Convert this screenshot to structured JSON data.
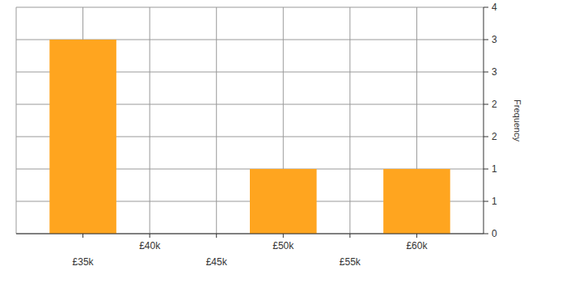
{
  "chart_data": {
    "type": "histogram",
    "y_label": "Frequency",
    "bins": [
      32500,
      37500,
      42500,
      47500,
      52500,
      57500,
      62500
    ],
    "values": [
      3,
      0,
      0,
      1,
      0,
      1
    ],
    "color": "#ffa51f",
    "xlim": [
      30000,
      65000
    ],
    "xticks": [
      {
        "value": 35000,
        "label": "£35k"
      },
      {
        "value": 40000,
        "label": "£40k"
      },
      {
        "value": 45000,
        "label": "£45k"
      },
      {
        "value": 50000,
        "label": "£50k"
      },
      {
        "value": 55000,
        "label": "£55k"
      },
      {
        "value": 60000,
        "label": "£60k"
      }
    ],
    "ylim": [
      0,
      3.5
    ],
    "yticks": [
      0,
      {
        "value": 0.5,
        "label": "1"
      },
      1,
      {
        "value": 1.5,
        "label": "2"
      },
      2,
      {
        "value": 2.5,
        "label": "3"
      },
      3,
      {
        "value": 3.5,
        "label": "4"
      }
    ],
    "grid": true
  }
}
